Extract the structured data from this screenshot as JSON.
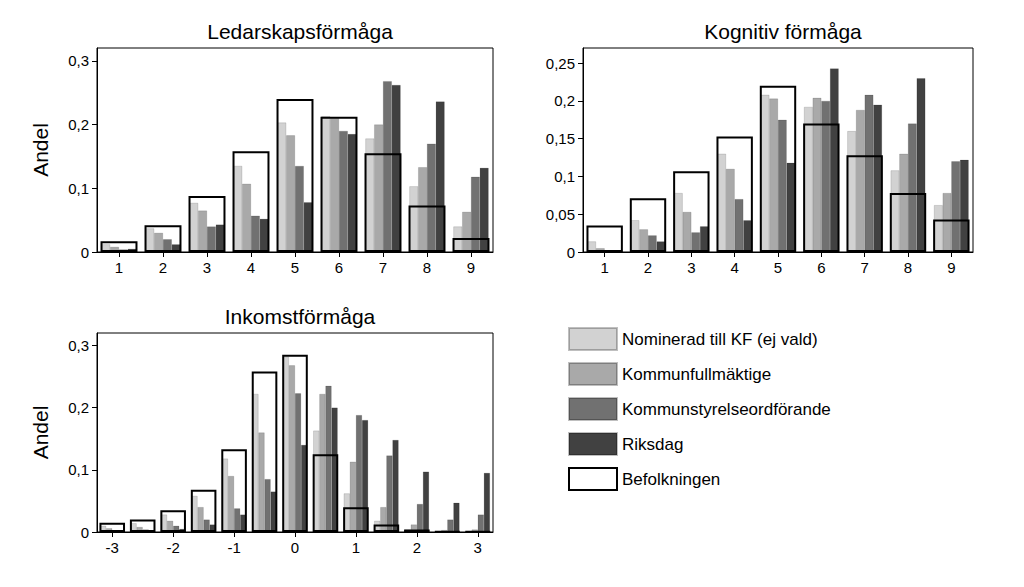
{
  "chart_data": [
    {
      "type": "bar",
      "title": "Ledarskapsförmåga",
      "ylabel": "Andel",
      "categories": [
        1,
        2,
        3,
        4,
        5,
        6,
        7,
        8,
        9
      ],
      "ylim": [
        0,
        0.32
      ],
      "yticks": [
        {
          "value": 0,
          "label": "0"
        },
        {
          "value": 0.1,
          "label": "0,1"
        },
        {
          "value": 0.2,
          "label": "0,2"
        },
        {
          "value": 0.3,
          "label": "0,3"
        }
      ],
      "grid": false,
      "series": [
        {
          "name": "Nominerad till KF (ej vald)",
          "color": "#d2d2d2",
          "values": [
            0.012,
            0.037,
            0.077,
            0.135,
            0.203,
            0.213,
            0.178,
            0.103,
            0.04
          ]
        },
        {
          "name": "Kommunfullmäktige",
          "color": "#a9a9a9",
          "values": [
            0.008,
            0.03,
            0.065,
            0.107,
            0.183,
            0.21,
            0.2,
            0.133,
            0.063
          ]
        },
        {
          "name": "Kommunstyrelseordförande",
          "color": "#717171",
          "values": [
            0.004,
            0.02,
            0.04,
            0.057,
            0.135,
            0.19,
            0.268,
            0.17,
            0.118
          ]
        },
        {
          "name": "Riksdag",
          "color": "#414141",
          "values": [
            0.005,
            0.012,
            0.043,
            0.052,
            0.078,
            0.185,
            0.262,
            0.236,
            0.132
          ]
        },
        {
          "name": "Befolkningen",
          "color": "#000000",
          "marker": "outline",
          "values": [
            0.017,
            0.042,
            0.088,
            0.158,
            0.24,
            0.212,
            0.155,
            0.073,
            0.022
          ]
        }
      ]
    },
    {
      "type": "bar",
      "title": "Kognitiv förmåga",
      "categories": [
        1,
        2,
        3,
        4,
        5,
        6,
        7,
        8,
        9
      ],
      "ylim": [
        0,
        0.27
      ],
      "yticks": [
        {
          "value": 0,
          "label": "0"
        },
        {
          "value": 0.05,
          "label": "0,05"
        },
        {
          "value": 0.1,
          "label": "0,1"
        },
        {
          "value": 0.15,
          "label": "0,15"
        },
        {
          "value": 0.2,
          "label": "0,2"
        },
        {
          "value": 0.25,
          "label": "0,25"
        }
      ],
      "grid": false,
      "series": [
        {
          "name": "Nominerad till KF (ej vald)",
          "color": "#d2d2d2",
          "values": [
            0.014,
            0.042,
            0.078,
            0.13,
            0.208,
            0.192,
            0.16,
            0.108,
            0.062
          ]
        },
        {
          "name": "Kommunfullmäktige",
          "color": "#a9a9a9",
          "values": [
            0.005,
            0.03,
            0.053,
            0.11,
            0.203,
            0.204,
            0.188,
            0.13,
            0.078
          ]
        },
        {
          "name": "Kommunstyrelseordförande",
          "color": "#717171",
          "values": [
            0.002,
            0.022,
            0.026,
            0.07,
            0.175,
            0.2,
            0.208,
            0.17,
            0.12
          ]
        },
        {
          "name": "Riksdag",
          "color": "#414141",
          "values": [
            0.001,
            0.014,
            0.034,
            0.042,
            0.118,
            0.243,
            0.195,
            0.23,
            0.122
          ]
        },
        {
          "name": "Befolkningen",
          "color": "#000000",
          "marker": "outline",
          "values": [
            0.035,
            0.071,
            0.107,
            0.153,
            0.22,
            0.17,
            0.128,
            0.078,
            0.043
          ]
        }
      ]
    },
    {
      "type": "bar",
      "title": "Inkomstförmåga",
      "ylabel": "Andel",
      "categories": [
        -3,
        null,
        -2,
        null,
        -1,
        null,
        0,
        null,
        1,
        null,
        2,
        null,
        3
      ],
      "ylim": [
        0,
        0.32
      ],
      "yticks": [
        {
          "value": 0,
          "label": "0"
        },
        {
          "value": 0.1,
          "label": "0,1"
        },
        {
          "value": 0.2,
          "label": "0,2"
        },
        {
          "value": 0.3,
          "label": "0,3"
        }
      ],
      "grid": false,
      "legend": "bottom right",
      "series": [
        {
          "name": "Nominerad till KF (ej vald)",
          "color": "#d2d2d2",
          "values": [
            0.01,
            0.014,
            0.028,
            0.058,
            0.118,
            0.222,
            0.282,
            0.163,
            0.062,
            0.018,
            0.004,
            0.001,
            0.001
          ]
        },
        {
          "name": "Kommunfullmäktige",
          "color": "#a9a9a9",
          "values": [
            0.006,
            0.008,
            0.018,
            0.04,
            0.09,
            0.16,
            0.268,
            0.222,
            0.113,
            0.04,
            0.012,
            0.003,
            0.004
          ]
        },
        {
          "name": "Kommunstyrelseordförande",
          "color": "#717171",
          "values": [
            0.002,
            0.004,
            0.01,
            0.02,
            0.038,
            0.085,
            0.223,
            0.235,
            0.188,
            0.123,
            0.045,
            0.02,
            0.028
          ]
        },
        {
          "name": "Riksdag",
          "color": "#414141",
          "values": [
            0.001,
            0.002,
            0.005,
            0.012,
            0.028,
            0.065,
            0.14,
            0.2,
            0.18,
            0.148,
            0.097,
            0.047,
            0.095
          ]
        },
        {
          "name": "Befolkningen",
          "color": "#000000",
          "marker": "outline",
          "values": [
            0.015,
            0.02,
            0.035,
            0.068,
            0.133,
            0.258,
            0.285,
            0.125,
            0.04,
            0.012,
            0.004,
            0.001,
            0.001
          ]
        }
      ]
    }
  ]
}
